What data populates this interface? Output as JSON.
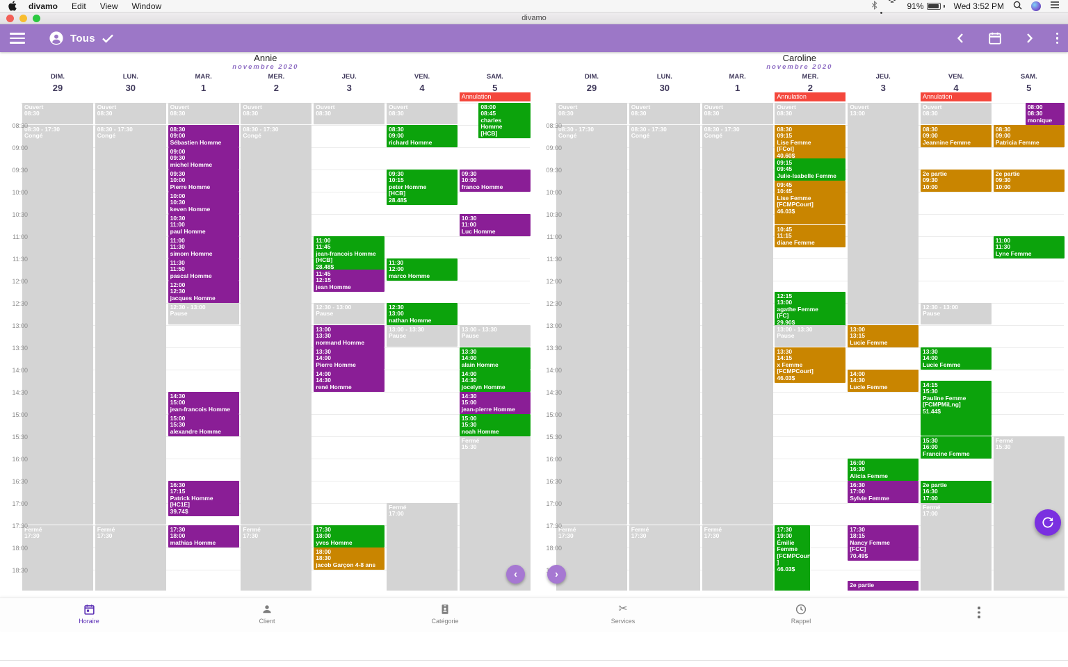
{
  "menu_bar": {
    "app_name": "divamo",
    "items": [
      "Edit",
      "View",
      "Window"
    ],
    "battery_percent": "91%",
    "clock": "Wed 3:52 PM",
    "status_icons": [
      "bluetooth",
      "wifi",
      "battery",
      "search",
      "siri",
      "notification-center"
    ]
  },
  "window": {
    "title": "divamo"
  },
  "toolbar": {
    "selected_filter": "Tous",
    "icons": [
      "menu",
      "person-circle",
      "check",
      "chevron-left",
      "calendar",
      "chevron-right",
      "more-vertical"
    ]
  },
  "time_labels": [
    "08:30",
    "09:00",
    "09:30",
    "10:00",
    "10:30",
    "11:00",
    "11:30",
    "12:00",
    "12:30",
    "13:00",
    "13:30",
    "14:00",
    "14:30",
    "15:00",
    "15:30",
    "16:00",
    "16:30",
    "17:00",
    "17:30",
    "18:00",
    "18:30"
  ],
  "calendars": [
    {
      "name": "Annie",
      "month": "novembre 2020",
      "days": [
        {
          "name": "DIM.",
          "num": "29",
          "events": [
            {
              "s": "08:00",
              "e": "08:30",
              "c": "gray",
              "txt": "Ouvert\n08:30"
            },
            {
              "s": "08:30",
              "e": "17:30",
              "c": "gray",
              "txt": "08:30 - 17:30\nCongé"
            },
            {
              "s": "17:30",
              "e": "19:15",
              "c": "gray",
              "txt": "Fermé\n17:30"
            }
          ]
        },
        {
          "name": "LUN.",
          "num": "30",
          "events": [
            {
              "s": "08:00",
              "e": "08:30",
              "c": "gray",
              "txt": "Ouvert\n08:30"
            },
            {
              "s": "08:30",
              "e": "17:30",
              "c": "gray",
              "txt": "08:30 - 17:30\nCongé"
            },
            {
              "s": "17:30",
              "e": "19:15",
              "c": "gray",
              "txt": "Fermé\n17:30"
            }
          ]
        },
        {
          "name": "MAR.",
          "num": "1",
          "events": [
            {
              "s": "08:00",
              "e": "08:30",
              "c": "gray",
              "txt": "Ouvert\n08:30"
            },
            {
              "s": "08:30",
              "e": "09:00",
              "c": "purple",
              "txt": "08:30\n09:00\nSébastien Homme"
            },
            {
              "s": "09:00",
              "e": "09:30",
              "c": "purple",
              "txt": "09:00\n09:30\nmichel Homme"
            },
            {
              "s": "09:30",
              "e": "10:00",
              "c": "purple",
              "txt": "09:30\n10:00\nPierre Homme"
            },
            {
              "s": "10:00",
              "e": "10:30",
              "c": "purple",
              "txt": "10:00\n10:30\nkeven Homme"
            },
            {
              "s": "10:30",
              "e": "11:00",
              "c": "purple",
              "txt": "10:30\n11:00\npaul Homme"
            },
            {
              "s": "11:00",
              "e": "11:30",
              "c": "purple",
              "txt": "11:00\n11:30\nsimom Homme"
            },
            {
              "s": "11:30",
              "e": "11:50",
              "c": "purple",
              "txt": "11:30\n11:50\npascal Homme"
            },
            {
              "s": "12:00",
              "e": "12:30",
              "c": "purple",
              "txt": "12:00\n12:30\njacques Homme"
            },
            {
              "s": "12:30",
              "e": "13:00",
              "c": "gray",
              "txt": "12:30 - 13:00\nPause"
            },
            {
              "s": "14:30",
              "e": "15:00",
              "c": "purple",
              "txt": "14:30\n15:00\njean-francois Homme"
            },
            {
              "s": "15:00",
              "e": "15:30",
              "c": "purple",
              "txt": "15:00\n15:30\nalexandre Homme"
            },
            {
              "s": "16:30",
              "e": "17:15",
              "c": "purple",
              "txt": "16:30\n17:15\nPatrick Homme\n[HC1E]\n39.74$"
            },
            {
              "s": "17:30",
              "e": "18:00",
              "c": "purple",
              "txt": "17:30\n18:00\nmathias Homme"
            }
          ]
        },
        {
          "name": "MER.",
          "num": "2",
          "events": [
            {
              "s": "08:00",
              "e": "08:30",
              "c": "gray",
              "txt": "Ouvert\n08:30"
            },
            {
              "s": "08:30",
              "e": "17:30",
              "c": "gray",
              "txt": "08:30 - 17:30\nCongé"
            },
            {
              "s": "17:30",
              "e": "19:15",
              "c": "gray",
              "txt": "Fermé\n17:30"
            }
          ]
        },
        {
          "name": "JEU.",
          "num": "3",
          "events": [
            {
              "s": "08:00",
              "e": "08:30",
              "c": "gray",
              "txt": "Ouvert\n08:30"
            },
            {
              "s": "11:00",
              "e": "11:45",
              "c": "green",
              "txt": "11:00\n11:45\njean-francois Homme\n[HCB]\n28.48$"
            },
            {
              "s": "11:45",
              "e": "12:15",
              "c": "purple",
              "txt": "11:45\n12:15\njean Homme"
            },
            {
              "s": "12:30",
              "e": "13:00",
              "c": "gray",
              "txt": "12:30 - 13:00\nPause"
            },
            {
              "s": "13:00",
              "e": "13:30",
              "c": "purple",
              "txt": "13:00\n13:30\nnormand Homme"
            },
            {
              "s": "13:30",
              "e": "14:00",
              "c": "purple",
              "txt": "13:30\n14:00\nPierre Homme"
            },
            {
              "s": "14:00",
              "e": "14:30",
              "c": "purple",
              "txt": "14:00\n14:30\nrené Homme"
            },
            {
              "s": "17:30",
              "e": "18:00",
              "c": "green",
              "txt": "17:30\n18:00\nyves Homme"
            },
            {
              "s": "18:00",
              "e": "18:30",
              "c": "orange",
              "txt": "18:00\n18:30\njacob Garçon 4-8 ans"
            }
          ]
        },
        {
          "name": "VEN.",
          "num": "4",
          "events": [
            {
              "s": "08:00",
              "e": "08:30",
              "c": "gray",
              "txt": "Ouvert\n08:30"
            },
            {
              "s": "08:30",
              "e": "09:00",
              "c": "green",
              "txt": "08:30\n09:00\nrichard Homme"
            },
            {
              "s": "09:30",
              "e": "10:15",
              "c": "green",
              "txt": "09:30\n10:15\npeter Homme\n[HCB]\n28.48$"
            },
            {
              "s": "11:30",
              "e": "12:00",
              "c": "green",
              "txt": "11:30\n12:00\nmarco Homme"
            },
            {
              "s": "12:30",
              "e": "13:00",
              "c": "green",
              "txt": "12:30\n13:00\nnathan Homme"
            },
            {
              "s": "13:00",
              "e": "13:30",
              "c": "gray",
              "txt": "13:00 - 13:30\nPause"
            },
            {
              "s": "17:00",
              "e": "19:15",
              "c": "gray",
              "txt": "Fermé\n17:00"
            }
          ]
        },
        {
          "name": "SAM.",
          "num": "5",
          "banner": "Annulation",
          "events": [
            {
              "s": "08:00",
              "e": "08:45",
              "c": "green",
              "xo": 0.27,
              "wf": 0.73,
              "txt": "08:00\n08:45\ncharles\nHomme\n[HCB]"
            },
            {
              "s": "09:30",
              "e": "10:00",
              "c": "purple",
              "txt": "09:30\n10:00\nfranco Homme"
            },
            {
              "s": "10:30",
              "e": "11:00",
              "c": "purple",
              "txt": "10:30\n11:00\nLuc Homme"
            },
            {
              "s": "13:00",
              "e": "13:30",
              "c": "gray",
              "txt": "13:00 - 13:30\nPause"
            },
            {
              "s": "13:30",
              "e": "14:00",
              "c": "green",
              "txt": "13:30\n14:00\nalain Homme"
            },
            {
              "s": "14:00",
              "e": "14:30",
              "c": "green",
              "txt": "14:00\n14:30\njocelyn Homme"
            },
            {
              "s": "14:30",
              "e": "15:00",
              "c": "purple",
              "txt": "14:30\n15:00\njean-pierre Homme"
            },
            {
              "s": "15:00",
              "e": "15:30",
              "c": "green",
              "txt": "15:00\n15:30\nnoah Homme"
            },
            {
              "s": "15:30",
              "e": "19:15",
              "c": "gray",
              "txt": "Fermé\n15:30"
            }
          ]
        }
      ]
    },
    {
      "name": "Caroline",
      "month": "novembre 2020",
      "days": [
        {
          "name": "DIM.",
          "num": "29",
          "events": [
            {
              "s": "08:00",
              "e": "08:30",
              "c": "gray",
              "txt": "Ouvert\n08:30"
            },
            {
              "s": "08:30",
              "e": "17:30",
              "c": "gray",
              "txt": "08:30 - 17:30\nCongé"
            },
            {
              "s": "17:30",
              "e": "19:15",
              "c": "gray",
              "txt": "Fermé\n17:30"
            }
          ]
        },
        {
          "name": "LUN.",
          "num": "30",
          "events": [
            {
              "s": "08:00",
              "e": "08:30",
              "c": "gray",
              "txt": "Ouvert\n08:30"
            },
            {
              "s": "08:30",
              "e": "17:30",
              "c": "gray",
              "txt": "08:30 - 17:30\nCongé"
            },
            {
              "s": "17:30",
              "e": "19:15",
              "c": "gray",
              "txt": "Fermé\n17:30"
            }
          ]
        },
        {
          "name": "MAR.",
          "num": "1",
          "events": [
            {
              "s": "08:00",
              "e": "08:30",
              "c": "gray",
              "txt": "Ouvert\n08:30"
            },
            {
              "s": "08:30",
              "e": "17:30",
              "c": "gray",
              "txt": "08:30 - 17:30\nCongé"
            },
            {
              "s": "17:30",
              "e": "19:15",
              "c": "gray",
              "txt": "Fermé\n17:30"
            }
          ]
        },
        {
          "name": "MER.",
          "num": "2",
          "banner": "Annulation",
          "events": [
            {
              "s": "08:00",
              "e": "08:30",
              "c": "gray",
              "txt": "Ouvert\n08:30"
            },
            {
              "s": "08:30",
              "e": "09:15",
              "c": "orange",
              "txt": "08:30\n09:15\nLise Femme\n[FCol]\n40.60$"
            },
            {
              "s": "09:15",
              "e": "09:45",
              "c": "green",
              "txt": "09:15\n09:45\nJulie-Isabelle Femme"
            },
            {
              "s": "09:45",
              "e": "10:45",
              "c": "orange",
              "txt": "09:45\n10:45\nLise Femme\n[FCMPCourt]\n46.03$"
            },
            {
              "s": "10:45",
              "e": "11:15",
              "c": "orange",
              "txt": "10:45\n11:15\ndiane Femme"
            },
            {
              "s": "12:15",
              "e": "13:00",
              "c": "green",
              "txt": "12:15\n13:00\nagathe Femme\n[FC]\n29.90$"
            },
            {
              "s": "13:00",
              "e": "13:30",
              "c": "gray",
              "txt": "13:00 - 13:30\nPause"
            },
            {
              "s": "13:30",
              "e": "14:15",
              "c": "orange",
              "txt": "13:30\n14:15\nx Femme\n[FCMPCourt]\n46.03$"
            },
            {
              "s": "17:30",
              "e": "19:00",
              "c": "green",
              "wf": 0.5,
              "txt": "17:30\n19:00\nÉmilie\nFemme\n[FCMPCourt\n]\n46.03$"
            }
          ]
        },
        {
          "name": "JEU.",
          "num": "3",
          "events": [
            {
              "s": "08:00",
              "e": "13:00",
              "c": "gray",
              "txt": "Ouvert\n13:00"
            },
            {
              "s": "13:00",
              "e": "13:15",
              "c": "orange",
              "txt": "13:00\n13:15\nLucie Femme"
            },
            {
              "s": "14:00",
              "e": "14:30",
              "c": "orange",
              "txt": "14:00\n14:30\nLucie Femme"
            },
            {
              "s": "16:00",
              "e": "16:30",
              "c": "green",
              "txt": "16:00\n16:30\nAlicia Femme"
            },
            {
              "s": "16:30",
              "e": "17:00",
              "c": "purple",
              "txt": "16:30\n17:00\nSylvie Femme"
            },
            {
              "s": "17:30",
              "e": "18:15",
              "c": "purple",
              "txt": "17:30\n18:15\nNancy Femme\n[FCC]\n70.49$"
            },
            {
              "s": "18:45",
              "e": "19:15",
              "c": "purple",
              "txt": "2e partie"
            }
          ]
        },
        {
          "name": "VEN.",
          "num": "4",
          "banner": "Annulation",
          "events": [
            {
              "s": "08:00",
              "e": "08:30",
              "c": "gray",
              "txt": "Ouvert\n08:30"
            },
            {
              "s": "08:30",
              "e": "09:00",
              "c": "orange",
              "txt": "08:30\n09:00\nJeannine Femme"
            },
            {
              "s": "09:30",
              "e": "10:00",
              "c": "orange",
              "txt": "2e partie\n09:30\n10:00"
            },
            {
              "s": "12:30",
              "e": "13:00",
              "c": "gray",
              "txt": "12:30 - 13:00\nPause"
            },
            {
              "s": "13:30",
              "e": "14:00",
              "c": "green",
              "txt": "13:30\n14:00\nLucie Femme"
            },
            {
              "s": "14:15",
              "e": "15:30",
              "c": "green",
              "txt": "14:15\n15:30\nPauline Femme\n[FCMPMiLng]\n51.44$"
            },
            {
              "s": "15:30",
              "e": "16:00",
              "c": "green",
              "txt": "15:30\n16:00\nFrancine Femme"
            },
            {
              "s": "16:30",
              "e": "17:00",
              "c": "green",
              "txt": "2e partie\n16:30\n17:00"
            },
            {
              "s": "17:00",
              "e": "19:15",
              "c": "gray",
              "txt": "Fermé\n17:00"
            }
          ]
        },
        {
          "name": "SAM.",
          "num": "5",
          "events": [
            {
              "s": "08:00",
              "e": "08:30",
              "c": "purple",
              "xo": 0.45,
              "wf": 0.55,
              "txt": "08:00\n08:30\nmonique"
            },
            {
              "s": "08:30",
              "e": "09:00",
              "c": "orange",
              "txt": "08:30\n09:00\nPatricia Femme"
            },
            {
              "s": "09:30",
              "e": "10:00",
              "c": "orange",
              "txt": "2e partie\n09:30\n10:00"
            },
            {
              "s": "11:00",
              "e": "11:30",
              "c": "green",
              "txt": "11:00\n11:30\nLyne Femme"
            },
            {
              "s": "15:30",
              "e": "19:15",
              "c": "gray",
              "txt": "Fermé\n15:30"
            }
          ]
        }
      ]
    }
  ],
  "bottom_nav": {
    "items": [
      {
        "label": "Horaire",
        "icon": "calendar",
        "active": true
      },
      {
        "label": "Client",
        "icon": "person",
        "active": false
      },
      {
        "label": "Catégorie",
        "icon": "badge",
        "active": false
      },
      {
        "label": "Services",
        "icon": "scissors",
        "active": false
      },
      {
        "label": "Rappel",
        "icon": "clock",
        "active": false
      }
    ]
  },
  "colors": {
    "toolbar_purple": "#9c77c7",
    "event_purple": "#8a1e96",
    "event_green": "#0ca30c",
    "event_orange": "#c98500",
    "event_gray": "#d4d4d4",
    "annulation_red": "#f4473c",
    "nav_active": "#5b2fb5"
  }
}
